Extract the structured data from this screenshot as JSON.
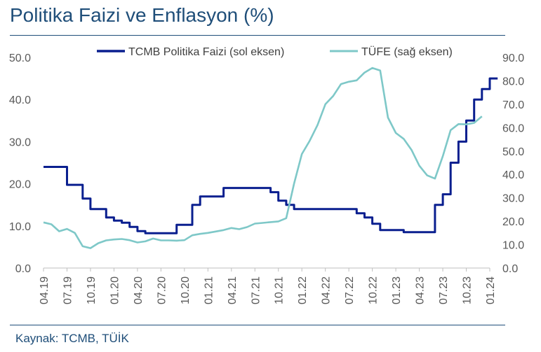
{
  "title": "Politika Faizi ve Enflasyon (%)",
  "source": "Kaynak: TCMB, TÜİK",
  "colors": {
    "policy": "#0a1f8f",
    "cpi": "#7ec8c8",
    "title": "#1f4e79"
  },
  "chart_data": {
    "type": "line",
    "title": "Politika Faizi ve Enflasyon (%)",
    "x_tick_labels": [
      "04.19",
      "07.19",
      "10.19",
      "01.20",
      "04.20",
      "07.20",
      "10.20",
      "01.21",
      "04.21",
      "07.21",
      "10.21",
      "01.22",
      "04.22",
      "07.22",
      "10.22",
      "01.23",
      "04.23",
      "07.23",
      "10.23",
      "01.24"
    ],
    "x_start": "2019-04",
    "ylim_left": [
      0,
      50
    ],
    "yticks_left": [
      "0.0",
      "10.0",
      "20.0",
      "30.0",
      "40.0",
      "50.0"
    ],
    "ylim_right": [
      0,
      90
    ],
    "yticks_right": [
      "0.0",
      "10.0",
      "20.0",
      "30.0",
      "40.0",
      "50.0",
      "60.0",
      "70.0",
      "80.0",
      "90.0"
    ],
    "legend_position": "top",
    "series": [
      {
        "name": "TCMB Politika Faizi (sol eksen)",
        "axis": "left",
        "step": true,
        "points": [
          [
            "2019-04",
            24
          ],
          [
            "2019-07",
            19.75
          ],
          [
            "2019-09",
            16.5
          ],
          [
            "2019-10",
            14
          ],
          [
            "2019-12",
            12
          ],
          [
            "2020-01",
            11.25
          ],
          [
            "2020-02",
            10.75
          ],
          [
            "2020-03",
            9.75
          ],
          [
            "2020-04",
            8.75
          ],
          [
            "2020-05",
            8.25
          ],
          [
            "2020-09",
            10.25
          ],
          [
            "2020-11",
            15
          ],
          [
            "2020-12",
            17
          ],
          [
            "2021-03",
            19
          ],
          [
            "2021-09",
            18
          ],
          [
            "2021-10",
            16
          ],
          [
            "2021-11",
            15
          ],
          [
            "2021-12",
            14
          ],
          [
            "2022-08",
            13
          ],
          [
            "2022-09",
            12
          ],
          [
            "2022-10",
            10.5
          ],
          [
            "2022-11",
            9
          ],
          [
            "2023-02",
            8.5
          ],
          [
            "2023-06",
            15
          ],
          [
            "2023-07",
            17.5
          ],
          [
            "2023-08",
            25
          ],
          [
            "2023-09",
            30
          ],
          [
            "2023-10",
            35
          ],
          [
            "2023-11",
            40
          ],
          [
            "2023-12",
            42.5
          ],
          [
            "2024-01",
            45
          ],
          [
            "2024-02",
            45
          ]
        ]
      },
      {
        "name": "TÜFE (sağ eksen)",
        "axis": "right",
        "step": false,
        "points": [
          [
            "2019-04",
            19.5
          ],
          [
            "2019-05",
            18.7
          ],
          [
            "2019-06",
            15.7
          ],
          [
            "2019-07",
            16.7
          ],
          [
            "2019-08",
            15
          ],
          [
            "2019-09",
            9.3
          ],
          [
            "2019-10",
            8.5
          ],
          [
            "2019-11",
            10.6
          ],
          [
            "2019-12",
            11.8
          ],
          [
            "2020-01",
            12.2
          ],
          [
            "2020-02",
            12.4
          ],
          [
            "2020-03",
            11.9
          ],
          [
            "2020-04",
            10.9
          ],
          [
            "2020-05",
            11.4
          ],
          [
            "2020-06",
            12.6
          ],
          [
            "2020-07",
            11.8
          ],
          [
            "2020-08",
            11.8
          ],
          [
            "2020-09",
            11.7
          ],
          [
            "2020-10",
            11.9
          ],
          [
            "2020-11",
            14
          ],
          [
            "2020-12",
            14.6
          ],
          [
            "2021-01",
            15
          ],
          [
            "2021-02",
            15.6
          ],
          [
            "2021-03",
            16.2
          ],
          [
            "2021-04",
            17.1
          ],
          [
            "2021-05",
            16.6
          ],
          [
            "2021-06",
            17.5
          ],
          [
            "2021-07",
            19
          ],
          [
            "2021-08",
            19.3
          ],
          [
            "2021-09",
            19.6
          ],
          [
            "2021-10",
            19.9
          ],
          [
            "2021-11",
            21.3
          ],
          [
            "2021-12",
            36.1
          ],
          [
            "2022-01",
            48.7
          ],
          [
            "2022-02",
            54.4
          ],
          [
            "2022-03",
            61.1
          ],
          [
            "2022-04",
            70
          ],
          [
            "2022-05",
            73.5
          ],
          [
            "2022-06",
            78.6
          ],
          [
            "2022-07",
            79.6
          ],
          [
            "2022-08",
            80.2
          ],
          [
            "2022-09",
            83.5
          ],
          [
            "2022-10",
            85.5
          ],
          [
            "2022-11",
            84.4
          ],
          [
            "2022-12",
            64.3
          ],
          [
            "2023-01",
            57.7
          ],
          [
            "2023-02",
            55.2
          ],
          [
            "2023-03",
            50.5
          ],
          [
            "2023-04",
            43.7
          ],
          [
            "2023-05",
            39.6
          ],
          [
            "2023-06",
            38.2
          ],
          [
            "2023-07",
            47.8
          ],
          [
            "2023-08",
            58.9
          ],
          [
            "2023-09",
            61.5
          ],
          [
            "2023-10",
            61.4
          ],
          [
            "2023-11",
            62
          ],
          [
            "2023-12",
            64.8
          ]
        ]
      }
    ]
  }
}
